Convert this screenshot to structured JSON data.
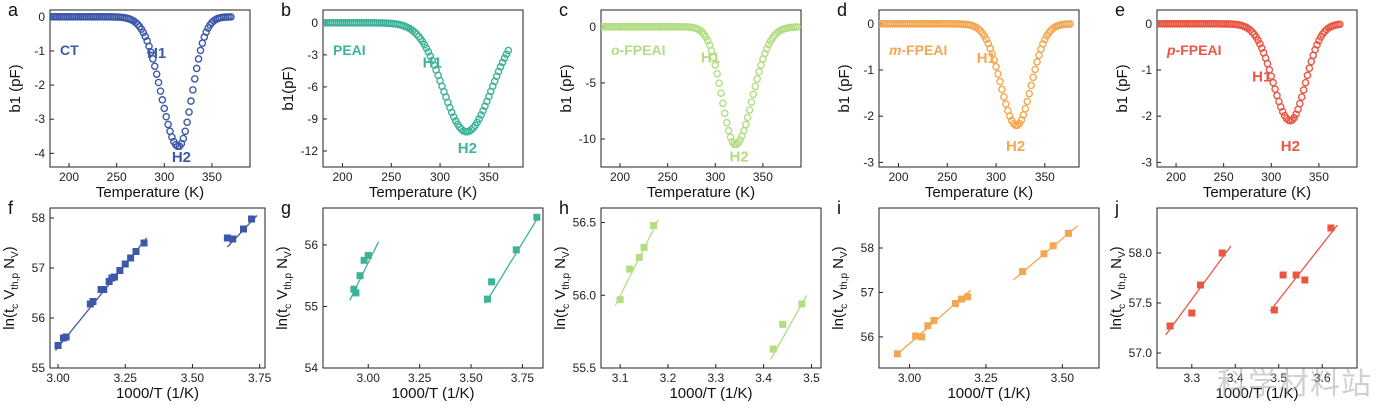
{
  "watermark": "科学材料站",
  "chart_data": [
    {
      "panel": "a",
      "type": "scatter",
      "color": "#3d58a8",
      "xlabel": "Temperature (K)",
      "ylabel": "b1 (pF)",
      "xlim": [
        180,
        390
      ],
      "ylim": [
        -4.4,
        0.2
      ],
      "xticks": [
        200,
        250,
        300,
        350
      ],
      "yticks": [
        0,
        -1,
        -2,
        -3,
        -4
      ],
      "legend": "CT",
      "legend_style": "normal",
      "series": [
        {
          "dip": {
            "T0": 315,
            "depth": 3.8,
            "sigma_left": 18,
            "sigma_right": 14,
            "start": 180,
            "end": 370,
            "step": 2
          }
        }
      ],
      "annotations": [
        {
          "text": "H1",
          "x": 292,
          "y": -1.2
        },
        {
          "text": "H2",
          "x": 318,
          "y": -4.25
        }
      ]
    },
    {
      "panel": "b",
      "type": "scatter",
      "color": "#3fb39a",
      "xlabel": "Temperature (K)",
      "ylabel": "b1(pF)",
      "xlim": [
        180,
        385
      ],
      "ylim": [
        -13.5,
        1.2
      ],
      "xticks": [
        200,
        250,
        300,
        350
      ],
      "yticks": [
        0,
        -3,
        -6,
        -9,
        -12
      ],
      "legend": "PEAI",
      "legend_style": "normal",
      "series": [
        {
          "dip": {
            "T0": 327,
            "depth": 10.2,
            "sigma_left": 24,
            "sigma_right": 26,
            "start": 180,
            "end": 370,
            "step": 2
          }
        }
      ],
      "annotations": [
        {
          "text": "H1",
          "x": 292,
          "y": -4.2
        },
        {
          "text": "H2",
          "x": 328,
          "y": -12.2
        }
      ]
    },
    {
      "panel": "c",
      "type": "scatter",
      "color": "#b2dd82",
      "xlabel": "Temperature (K)",
      "ylabel": "b1 (pF)",
      "xlim": [
        180,
        390
      ],
      "ylim": [
        -12.5,
        1.5
      ],
      "xticks": [
        200,
        250,
        300,
        350
      ],
      "yticks": [
        0,
        -5,
        -10
      ],
      "legend": "o-FPEAI",
      "legend_style": "italic-prefix",
      "series": [
        {
          "dip": {
            "T0": 321,
            "depth": 10.5,
            "sigma_left": 14,
            "sigma_right": 18,
            "start": 180,
            "end": 386,
            "step": 2
          }
        }
      ],
      "annotations": [
        {
          "text": "H1",
          "x": 295,
          "y": -3.2
        },
        {
          "text": "H2",
          "x": 325,
          "y": -12.0
        }
      ]
    },
    {
      "panel": "d",
      "type": "scatter",
      "color": "#f2a850",
      "xlabel": "Temperature (K)",
      "ylabel": "b1 (pF)",
      "xlim": [
        180,
        385
      ],
      "ylim": [
        -3.1,
        0.3
      ],
      "xticks": [
        200,
        250,
        300,
        350
      ],
      "yticks": [
        0,
        -1,
        -2,
        -3
      ],
      "legend": "m-FPEAI",
      "legend_style": "italic-prefix",
      "series": [
        {
          "dip": {
            "T0": 321,
            "depth": 2.2,
            "sigma_left": 16,
            "sigma_right": 15,
            "start": 180,
            "end": 376,
            "step": 2
          }
        }
      ],
      "annotations": [
        {
          "text": "H1",
          "x": 290,
          "y": -0.85
        },
        {
          "text": "H2",
          "x": 320,
          "y": -2.75
        }
      ]
    },
    {
      "panel": "e",
      "type": "scatter",
      "color": "#e95744",
      "xlabel": "Temperature (K)",
      "ylabel": "b1 (pF)",
      "xlim": [
        180,
        390
      ],
      "ylim": [
        -3.1,
        0.3
      ],
      "xticks": [
        200,
        250,
        300,
        350
      ],
      "yticks": [
        0,
        -1,
        -2,
        -3
      ],
      "legend": "p-FPEAI",
      "legend_style": "italic-prefix",
      "series": [
        {
          "dip": {
            "T0": 320,
            "depth": 2.1,
            "sigma_left": 18,
            "sigma_right": 16,
            "start": 180,
            "end": 372,
            "step": 2
          }
        }
      ],
      "annotations": [
        {
          "text": "H1",
          "x": 290,
          "y": -1.25
        },
        {
          "text": "H2",
          "x": 320,
          "y": -2.75
        }
      ]
    },
    {
      "panel": "f",
      "type": "scatter",
      "color": "#3d58a8",
      "xlabel": "1000/T (1/K)",
      "ylabel": "ln(t_c V_th,p N_V)",
      "xlim": [
        2.97,
        3.77
      ],
      "ylim": [
        55.0,
        58.2
      ],
      "xticks": [
        3.0,
        3.25,
        3.5,
        3.75
      ],
      "xtick_labels": [
        "3.00",
        "3.25",
        "3.50",
        "3.75"
      ],
      "yticks": [
        55,
        56,
        57,
        58
      ],
      "series": [
        {
          "points": [
            [
              3.0,
              55.45
            ],
            [
              3.02,
              55.6
            ],
            [
              3.03,
              55.62
            ],
            [
              3.12,
              56.28
            ],
            [
              3.13,
              56.33
            ],
            [
              3.16,
              56.57
            ],
            [
              3.17,
              56.57
            ],
            [
              3.19,
              56.73
            ],
            [
              3.2,
              56.8
            ],
            [
              3.21,
              56.82
            ],
            [
              3.23,
              56.95
            ],
            [
              3.25,
              57.08
            ],
            [
              3.27,
              57.2
            ],
            [
              3.29,
              57.33
            ],
            [
              3.32,
              57.5
            ]
          ],
          "fit": [
            [
              2.99,
              55.35
            ],
            [
              3.33,
              57.6
            ]
          ]
        },
        {
          "points": [
            [
              3.63,
              57.6
            ],
            [
              3.65,
              57.58
            ],
            [
              3.69,
              57.78
            ],
            [
              3.72,
              57.98
            ]
          ],
          "fit": [
            [
              3.63,
              57.42
            ],
            [
              3.74,
              58.05
            ]
          ]
        }
      ]
    },
    {
      "panel": "g",
      "type": "scatter",
      "color": "#3fb39a",
      "xlabel": "1000/T (1/K)",
      "ylabel": "ln(t_c V_th,p N_V)",
      "xlim": [
        2.78,
        3.85
      ],
      "ylim": [
        54.0,
        56.6
      ],
      "xticks": [
        3.0,
        3.25,
        3.5,
        3.75
      ],
      "xtick_labels": [
        "3.00",
        "3.25",
        "3.50",
        "3.75"
      ],
      "yticks": [
        54,
        55,
        56
      ],
      "series": [
        {
          "points": [
            [
              2.93,
              55.28
            ],
            [
              2.94,
              55.22
            ],
            [
              2.96,
              55.5
            ],
            [
              2.98,
              55.75
            ],
            [
              3.0,
              55.83
            ]
          ],
          "fit": [
            [
              2.91,
              55.1
            ],
            [
              3.05,
              56.05
            ]
          ]
        },
        {
          "points": [
            [
              3.58,
              55.12
            ],
            [
              3.6,
              55.4
            ],
            [
              3.72,
              55.92
            ],
            [
              3.82,
              56.45
            ]
          ],
          "fit": [
            [
              3.57,
              55.05
            ],
            [
              3.83,
              56.47
            ]
          ]
        }
      ]
    },
    {
      "panel": "h",
      "type": "scatter",
      "color": "#b2dd82",
      "xlabel": "1000/T (1/K)",
      "ylabel": "ln(t_c V_th,p N_V)",
      "xlim": [
        3.06,
        3.52
      ],
      "ylim": [
        55.5,
        56.6
      ],
      "xticks": [
        3.1,
        3.2,
        3.3,
        3.4,
        3.5
      ],
      "xtick_labels": [
        "3.1",
        "3.2",
        "3.3",
        "3.4",
        "3.5"
      ],
      "yticks": [
        55.5,
        56.0,
        56.5
      ],
      "ytick_labels": [
        "55.5",
        "56.0",
        "56.5"
      ],
      "series": [
        {
          "points": [
            [
              3.1,
              55.97
            ],
            [
              3.12,
              56.18
            ],
            [
              3.14,
              56.26
            ],
            [
              3.15,
              56.33
            ],
            [
              3.17,
              56.48
            ]
          ],
          "fit": [
            [
              3.09,
              55.93
            ],
            [
              3.18,
              56.52
            ]
          ]
        },
        {
          "points": [
            [
              3.42,
              55.63
            ],
            [
              3.44,
              55.8
            ],
            [
              3.48,
              55.94
            ]
          ],
          "fit": [
            [
              3.415,
              55.56
            ],
            [
              3.49,
              56.0
            ]
          ]
        }
      ]
    },
    {
      "panel": "i",
      "type": "scatter",
      "color": "#f2a850",
      "xlabel": "1000/T (1/K)",
      "ylabel": "ln(t_c V_th,p N_V)",
      "xlim": [
        2.9,
        3.62
      ],
      "ylim": [
        55.3,
        58.9
      ],
      "xticks": [
        3.0,
        3.25,
        3.5
      ],
      "xtick_labels": [
        "3.00",
        "3.25",
        "3.50"
      ],
      "yticks": [
        56,
        57,
        58
      ],
      "series": [
        {
          "points": [
            [
              2.96,
              55.62
            ],
            [
              3.02,
              56.02
            ],
            [
              3.04,
              56.0
            ],
            [
              3.06,
              56.25
            ],
            [
              3.08,
              56.37
            ],
            [
              3.15,
              56.75
            ],
            [
              3.17,
              56.85
            ],
            [
              3.19,
              56.9
            ]
          ],
          "fit": [
            [
              2.95,
              55.55
            ],
            [
              3.2,
              57.05
            ]
          ]
        },
        {
          "points": [
            [
              3.37,
              57.47
            ],
            [
              3.44,
              57.87
            ],
            [
              3.47,
              58.05
            ],
            [
              3.52,
              58.33
            ]
          ],
          "fit": [
            [
              3.34,
              57.28
            ],
            [
              3.55,
              58.5
            ]
          ]
        }
      ]
    },
    {
      "panel": "j",
      "type": "scatter",
      "color": "#e95744",
      "xlabel": "1000/T (1/K)",
      "ylabel": "ln(t_c V_th,p N_V)",
      "xlim": [
        3.22,
        3.68
      ],
      "ylim": [
        56.85,
        58.45
      ],
      "xticks": [
        3.3,
        3.4,
        3.5,
        3.6
      ],
      "xtick_labels": [
        "3.3",
        "3.4",
        "3.5",
        "3.6"
      ],
      "yticks": [
        57.0,
        57.5,
        58.0
      ],
      "ytick_labels": [
        "57.0",
        "57.5",
        "58.0"
      ],
      "series": [
        {
          "points": [
            [
              3.25,
              57.27
            ],
            [
              3.3,
              57.4
            ],
            [
              3.32,
              57.68
            ],
            [
              3.37,
              58.0
            ]
          ],
          "fit": [
            [
              3.24,
              57.18
            ],
            [
              3.39,
              58.07
            ]
          ]
        },
        {
          "points": [
            [
              3.49,
              57.43
            ],
            [
              3.51,
              57.78
            ],
            [
              3.54,
              57.78
            ],
            [
              3.56,
              57.73
            ],
            [
              3.62,
              58.25
            ]
          ],
          "fit": [
            [
              3.48,
              57.42
            ],
            [
              3.635,
              58.28
            ]
          ]
        }
      ]
    }
  ]
}
